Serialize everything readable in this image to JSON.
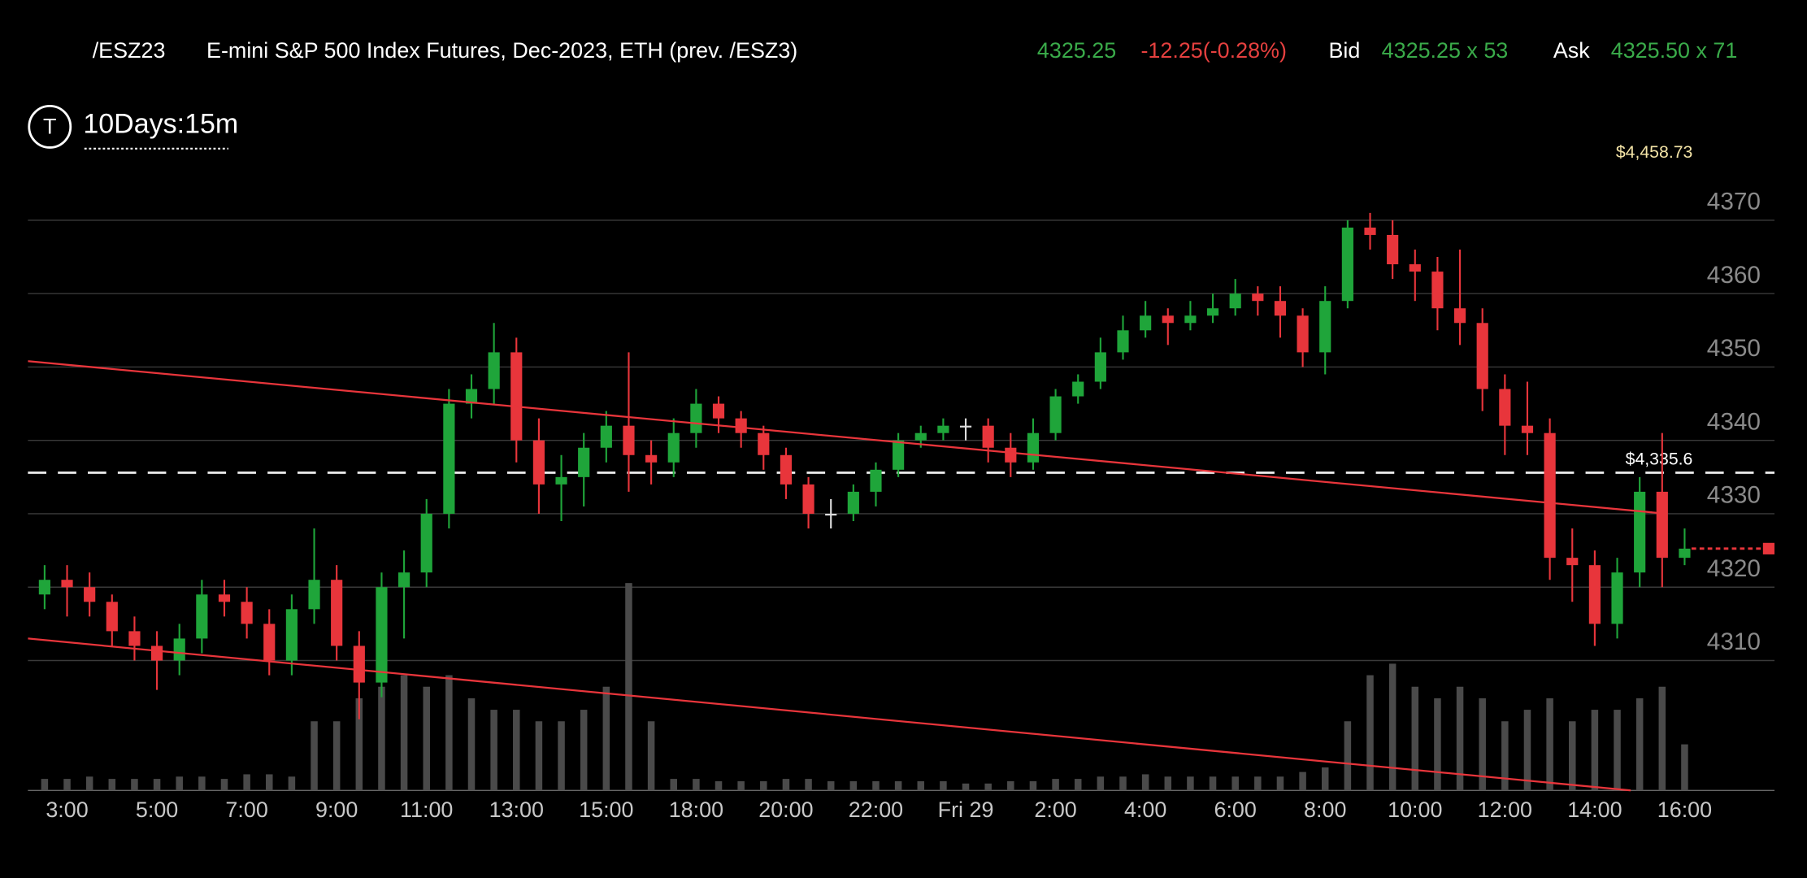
{
  "header": {
    "symbol": "/ESZ23",
    "description": "E-mini S&P 500 Index Futures, Dec-2023, ETH (prev. /ESZ3)",
    "last": "4325.25",
    "change": "-12.25(-0.28%)",
    "bid_label": "Bid",
    "bid": "4325.25 x 53",
    "ask_label": "Ask",
    "ask": "4325.50 x 71",
    "timeframe": "10Days:15m",
    "icon_letter": "T"
  },
  "chart_data": {
    "type": "candlestick",
    "categories": [
      null,
      "3:00",
      null,
      null,
      null,
      "5:00",
      null,
      null,
      null,
      "7:00",
      null,
      null,
      null,
      "9:00",
      null,
      null,
      null,
      "11:00",
      null,
      null,
      null,
      "13:00",
      null,
      null,
      null,
      "15:00",
      null,
      null,
      null,
      "18:00",
      null,
      null,
      null,
      "20:00",
      null,
      null,
      null,
      "22:00",
      null,
      null,
      null,
      "Fri 29",
      null,
      null,
      null,
      "2:00",
      null,
      null,
      null,
      "4:00",
      null,
      null,
      null,
      "6:00",
      null,
      null,
      null,
      "8:00",
      null,
      null,
      null,
      "10:00",
      null,
      null,
      null,
      "12:00",
      null,
      null,
      null,
      "14:00",
      null,
      null,
      null,
      "16:00"
    ],
    "open": [
      4319,
      4321,
      4320,
      4318,
      4314,
      4312,
      4310,
      4313,
      4319,
      4318,
      4315,
      4310,
      4317,
      4321,
      4312,
      4307,
      4320,
      4322,
      4330,
      4345,
      4347,
      4352,
      4340,
      4334,
      4335,
      4339,
      4342,
      4338,
      4337,
      4341,
      4345,
      4343,
      4341,
      4338,
      4334,
      4330,
      4330,
      4333,
      4336,
      4340,
      4341,
      4342,
      4342,
      4339,
      4337,
      4341,
      4346,
      4348,
      4352,
      4355,
      4357,
      4356,
      4357,
      4358,
      4360,
      4359,
      4357,
      4352,
      4359,
      4369,
      4368,
      4364,
      4363,
      4358,
      4356,
      4347,
      4342,
      4341,
      4324,
      4323,
      4315,
      4322,
      4333,
      4324
    ],
    "high": [
      4323,
      4323,
      4322,
      4319,
      4316,
      4314,
      4315,
      4321,
      4321,
      4320,
      4317,
      4319,
      4328,
      4323,
      4314,
      4322,
      4325,
      4332,
      4347,
      4349,
      4356,
      4354,
      4343,
      4338,
      4341,
      4344,
      4352,
      4340,
      4343,
      4347,
      4346,
      4344,
      4342,
      4339,
      4335,
      4332,
      4334,
      4337,
      4341,
      4342,
      4343,
      4343,
      4343,
      4341,
      4343,
      4347,
      4349,
      4354,
      4357,
      4359,
      4358,
      4359,
      4360,
      4362,
      4361,
      4361,
      4358,
      4361,
      4370,
      4371,
      4370,
      4366,
      4365,
      4366,
      4358,
      4349,
      4348,
      4343,
      4328,
      4325,
      4324,
      4335,
      4341,
      4328
    ],
    "low": [
      4317,
      4316,
      4316,
      4312,
      4310,
      4306,
      4308,
      4311,
      4316,
      4313,
      4308,
      4308,
      4315,
      4310,
      4302,
      4305,
      4313,
      4320,
      4328,
      4343,
      4345,
      4337,
      4330,
      4329,
      4331,
      4337,
      4333,
      4334,
      4335,
      4339,
      4341,
      4339,
      4336,
      4332,
      4328,
      4328,
      4329,
      4331,
      4335,
      4339,
      4340,
      4340,
      4337,
      4335,
      4336,
      4340,
      4345,
      4347,
      4351,
      4354,
      4353,
      4355,
      4356,
      4357,
      4357,
      4354,
      4350,
      4349,
      4358,
      4366,
      4362,
      4359,
      4355,
      4353,
      4344,
      4338,
      4338,
      4321,
      4318,
      4312,
      4313,
      4320,
      4320,
      4323
    ],
    "close": [
      4321,
      4320,
      4318,
      4314,
      4312,
      4310,
      4313,
      4319,
      4318,
      4315,
      4310,
      4317,
      4321,
      4312,
      4307,
      4320,
      4322,
      4330,
      4345,
      4347,
      4352,
      4340,
      4334,
      4335,
      4339,
      4342,
      4338,
      4337,
      4341,
      4345,
      4343,
      4341,
      4338,
      4334,
      4330,
      4330,
      4333,
      4336,
      4340,
      4341,
      4342,
      4342,
      4339,
      4337,
      4341,
      4346,
      4348,
      4352,
      4355,
      4357,
      4356,
      4357,
      4358,
      4360,
      4359,
      4357,
      4352,
      4359,
      4369,
      4368,
      4364,
      4363,
      4358,
      4356,
      4347,
      4342,
      4341,
      4324,
      4323,
      4315,
      4322,
      4333,
      4324,
      4325.25
    ],
    "volume": [
      5,
      5,
      6,
      5,
      5,
      5,
      6,
      6,
      5,
      7,
      7,
      6,
      30,
      30,
      40,
      45,
      50,
      45,
      50,
      40,
      35,
      35,
      30,
      30,
      35,
      45,
      90,
      30,
      5,
      5,
      4,
      4,
      4,
      5,
      5,
      4,
      4,
      4,
      4,
      4,
      4,
      3,
      3,
      4,
      4,
      5,
      5,
      6,
      6,
      7,
      6,
      6,
      6,
      6,
      6,
      6,
      8,
      10,
      30,
      50,
      55,
      45,
      40,
      45,
      40,
      30,
      35,
      40,
      30,
      35,
      35,
      40,
      45,
      20
    ],
    "volume_lim": [
      0,
      100
    ],
    "up_color": "#1fa53a",
    "down_color": "#e8353b",
    "doji_color": "#dddddd",
    "volume_color": "#4a4a4a",
    "ylim": [
      4292.3,
      4379.6
    ],
    "yticks": [
      4310,
      4320,
      4330,
      4340,
      4350,
      4360,
      4370
    ],
    "grid": true,
    "trendlines": [
      {
        "x": [
          -0.74,
          71.87
        ],
        "y": [
          4350.8,
          4330.1
        ],
        "color": "#e8353b"
      },
      {
        "x": [
          -0.74,
          70.6
        ],
        "y": [
          4313.0,
          4292.3
        ],
        "color": "#e8353b"
      }
    ],
    "alert_line": {
      "value": 4335.6,
      "label": "$4,335.6"
    },
    "last_price": {
      "value": 4325.25,
      "color": "#e8353b"
    },
    "offscreen_annotation": "$4,458.73"
  }
}
